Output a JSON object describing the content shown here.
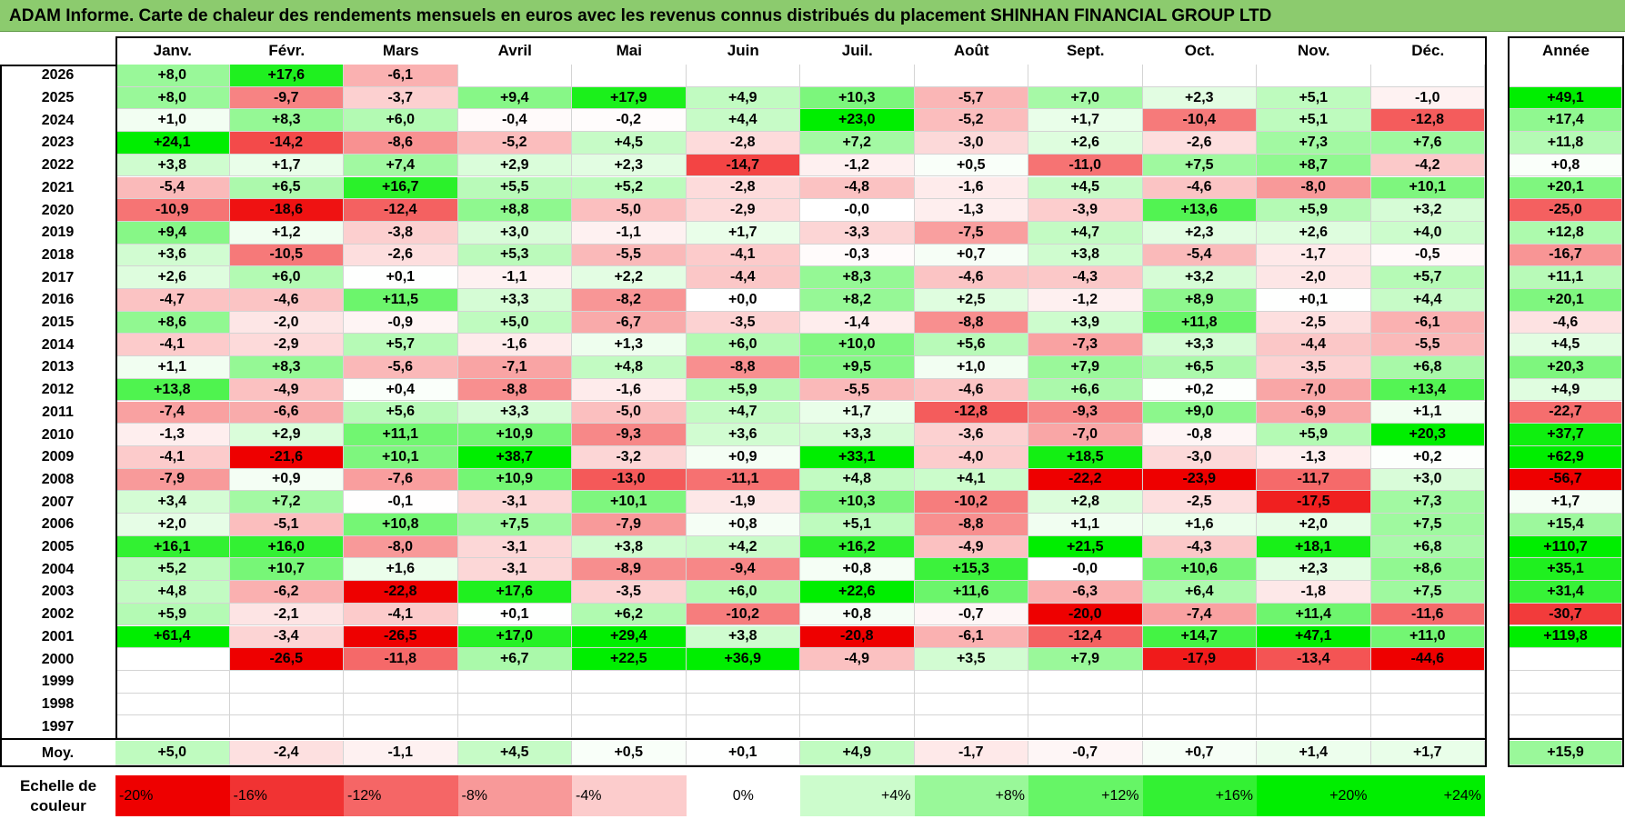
{
  "title": "ADAM Informe. Carte de chaleur des rendements mensuels en euros avec les revenus connus distribués du placement SHINHAN FINANCIAL GROUP LTD",
  "colors": {
    "title_bg": "#8ccb6e",
    "max_green": "#00ee00",
    "max_red": "#ee0000"
  },
  "chart_data": {
    "type": "heatmap",
    "months": [
      "Janv.",
      "Févr.",
      "Mars",
      "Avril",
      "Mai",
      "Juin",
      "Juil.",
      "Août",
      "Sept.",
      "Oct.",
      "Nov.",
      "Déc."
    ],
    "year_header": "Année",
    "avg_label": "Moy.",
    "rows": [
      {
        "year": "2026",
        "m": [
          "+8,0",
          "+17,6",
          "-6,1",
          "",
          "",
          "",
          "",
          "",
          "",
          "",
          "",
          ""
        ],
        "y": ""
      },
      {
        "year": "2025",
        "m": [
          "+8,0",
          "-9,7",
          "-3,7",
          "+9,4",
          "+17,9",
          "+4,9",
          "+10,3",
          "-5,7",
          "+7,0",
          "+2,3",
          "+5,1",
          "-1,0"
        ],
        "y": "+49,1"
      },
      {
        "year": "2024",
        "m": [
          "+1,0",
          "+8,3",
          "+6,0",
          "-0,4",
          "-0,2",
          "+4,4",
          "+23,0",
          "-5,2",
          "+1,7",
          "-10,4",
          "+5,1",
          "-12,8"
        ],
        "y": "+17,4"
      },
      {
        "year": "2023",
        "m": [
          "+24,1",
          "-14,2",
          "-8,6",
          "-5,2",
          "+4,5",
          "-2,8",
          "+7,2",
          "-3,0",
          "+2,6",
          "-2,6",
          "+7,3",
          "+7,6"
        ],
        "y": "+11,8"
      },
      {
        "year": "2022",
        "m": [
          "+3,8",
          "+1,7",
          "+7,4",
          "+2,9",
          "+2,3",
          "-14,7",
          "-1,2",
          "+0,5",
          "-11,0",
          "+7,5",
          "+8,7",
          "-4,2"
        ],
        "y": "+0,8"
      },
      {
        "year": "2021",
        "m": [
          "-5,4",
          "+6,5",
          "+16,7",
          "+5,5",
          "+5,2",
          "-2,8",
          "-4,8",
          "-1,6",
          "+4,5",
          "-4,6",
          "-8,0",
          "+10,1"
        ],
        "y": "+20,1"
      },
      {
        "year": "2020",
        "m": [
          "-10,9",
          "-18,6",
          "-12,4",
          "+8,8",
          "-5,0",
          "-2,9",
          "-0,0",
          "-1,3",
          "-3,9",
          "+13,6",
          "+5,9",
          "+3,2"
        ],
        "y": "-25,0"
      },
      {
        "year": "2019",
        "m": [
          "+9,4",
          "+1,2",
          "-3,8",
          "+3,0",
          "-1,1",
          "+1,7",
          "-3,3",
          "-7,5",
          "+4,7",
          "+2,3",
          "+2,6",
          "+4,0"
        ],
        "y": "+12,8"
      },
      {
        "year": "2018",
        "m": [
          "+3,6",
          "-10,5",
          "-2,6",
          "+5,3",
          "-5,5",
          "-4,1",
          "-0,3",
          "+0,7",
          "+3,8",
          "-5,4",
          "-1,7",
          "-0,5"
        ],
        "y": "-16,7"
      },
      {
        "year": "2017",
        "m": [
          "+2,6",
          "+6,0",
          "+0,1",
          "-1,1",
          "+2,2",
          "-4,4",
          "+8,3",
          "-4,6",
          "-4,3",
          "+3,2",
          "-2,0",
          "+5,7"
        ],
        "y": "+11,1"
      },
      {
        "year": "2016",
        "m": [
          "-4,7",
          "-4,6",
          "+11,5",
          "+3,3",
          "-8,2",
          "+0,0",
          "+8,2",
          "+2,5",
          "-1,2",
          "+8,9",
          "+0,1",
          "+4,4"
        ],
        "y": "+20,1"
      },
      {
        "year": "2015",
        "m": [
          "+8,6",
          "-2,0",
          "-0,9",
          "+5,0",
          "-6,7",
          "-3,5",
          "-1,4",
          "-8,8",
          "+3,9",
          "+11,8",
          "-2,5",
          "-6,1"
        ],
        "y": "-4,6"
      },
      {
        "year": "2014",
        "m": [
          "-4,1",
          "-2,9",
          "+5,7",
          "-1,6",
          "+1,3",
          "+6,0",
          "+10,0",
          "+5,6",
          "-7,3",
          "+3,3",
          "-4,4",
          "-5,5"
        ],
        "y": "+4,5"
      },
      {
        "year": "2013",
        "m": [
          "+1,1",
          "+8,3",
          "-5,6",
          "-7,1",
          "+4,8",
          "-8,8",
          "+9,5",
          "+1,0",
          "+7,9",
          "+6,5",
          "-3,5",
          "+6,8"
        ],
        "y": "+20,3"
      },
      {
        "year": "2012",
        "m": [
          "+13,8",
          "-4,9",
          "+0,4",
          "-8,8",
          "-1,6",
          "+5,9",
          "-5,5",
          "-4,6",
          "+6,6",
          "+0,2",
          "-7,0",
          "+13,4"
        ],
        "y": "+4,9"
      },
      {
        "year": "2011",
        "m": [
          "-7,4",
          "-6,6",
          "+5,6",
          "+3,3",
          "-5,0",
          "+4,7",
          "+1,7",
          "-12,8",
          "-9,3",
          "+9,0",
          "-6,9",
          "+1,1"
        ],
        "y": "-22,7"
      },
      {
        "year": "2010",
        "m": [
          "-1,3",
          "+2,9",
          "+11,1",
          "+10,9",
          "-9,3",
          "+3,6",
          "+3,3",
          "-3,6",
          "-7,0",
          "-0,8",
          "+5,9",
          "+20,3"
        ],
        "y": "+37,7"
      },
      {
        "year": "2009",
        "m": [
          "-4,1",
          "-21,6",
          "+10,1",
          "+38,7",
          "-3,2",
          "+0,9",
          "+33,1",
          "-4,0",
          "+18,5",
          "-3,0",
          "-1,3",
          "+0,2"
        ],
        "y": "+62,9"
      },
      {
        "year": "2008",
        "m": [
          "-7,9",
          "+0,9",
          "-7,6",
          "+10,9",
          "-13,0",
          "-11,1",
          "+4,8",
          "+4,1",
          "-22,2",
          "-23,9",
          "-11,7",
          "+3,0"
        ],
        "y": "-56,7"
      },
      {
        "year": "2007",
        "m": [
          "+3,4",
          "+7,2",
          "-0,1",
          "-3,1",
          "+10,1",
          "-1,9",
          "+10,3",
          "-10,2",
          "+2,8",
          "-2,5",
          "-17,5",
          "+7,3"
        ],
        "y": "+1,7"
      },
      {
        "year": "2006",
        "m": [
          "+2,0",
          "-5,1",
          "+10,8",
          "+7,5",
          "-7,9",
          "+0,8",
          "+5,1",
          "-8,8",
          "+1,1",
          "+1,6",
          "+2,0",
          "+7,5"
        ],
        "y": "+15,4"
      },
      {
        "year": "2005",
        "m": [
          "+16,1",
          "+16,0",
          "-8,0",
          "-3,1",
          "+3,8",
          "+4,2",
          "+16,2",
          "-4,9",
          "+21,5",
          "-4,3",
          "+18,1",
          "+6,8"
        ],
        "y": "+110,7"
      },
      {
        "year": "2004",
        "m": [
          "+5,2",
          "+10,7",
          "+1,6",
          "-3,1",
          "-8,9",
          "-9,4",
          "+0,8",
          "+15,3",
          "-0,0",
          "+10,6",
          "+2,3",
          "+8,6"
        ],
        "y": "+35,1"
      },
      {
        "year": "2003",
        "m": [
          "+4,8",
          "-6,2",
          "-22,8",
          "+17,6",
          "-3,5",
          "+6,0",
          "+22,6",
          "+11,6",
          "-6,3",
          "+6,4",
          "-1,8",
          "+7,5"
        ],
        "y": "+31,4"
      },
      {
        "year": "2002",
        "m": [
          "+5,9",
          "-2,1",
          "-4,1",
          "+0,1",
          "+6,2",
          "-10,2",
          "+0,8",
          "-0,7",
          "-20,0",
          "-7,4",
          "+11,4",
          "-11,6"
        ],
        "y": "-30,7"
      },
      {
        "year": "2001",
        "m": [
          "+61,4",
          "-3,4",
          "-26,5",
          "+17,0",
          "+29,4",
          "+3,8",
          "-20,8",
          "-6,1",
          "-12,4",
          "+14,7",
          "+47,1",
          "+11,0"
        ],
        "y": "+119,8"
      },
      {
        "year": "2000",
        "m": [
          "",
          "-26,5",
          "-11,8",
          "+6,7",
          "+22,5",
          "+36,9",
          "-4,9",
          "+3,5",
          "+7,9",
          "-17,9",
          "-13,4",
          "-44,6"
        ],
        "y": ""
      },
      {
        "year": "1999",
        "m": [
          "",
          "",
          "",
          "",
          "",
          "",
          "",
          "",
          "",
          "",
          "",
          ""
        ],
        "y": ""
      },
      {
        "year": "1998",
        "m": [
          "",
          "",
          "",
          "",
          "",
          "",
          "",
          "",
          "",
          "",
          "",
          ""
        ],
        "y": ""
      },
      {
        "year": "1997",
        "m": [
          "",
          "",
          "",
          "",
          "",
          "",
          "",
          "",
          "",
          "",
          "",
          ""
        ],
        "y": ""
      }
    ],
    "averages": {
      "m": [
        "+5,0",
        "-2,4",
        "-1,1",
        "+4,5",
        "+0,5",
        "+0,1",
        "+4,9",
        "-1,7",
        "-0,7",
        "+0,7",
        "+1,4",
        "+1,7"
      ],
      "y": "+15,9"
    },
    "scale_label": "Echelle de couleur",
    "scale": [
      "-20%",
      "-16%",
      "-12%",
      "-8%",
      "-4%",
      "0%",
      "+4%",
      "+8%",
      "+12%",
      "+16%",
      "+20%",
      "+24%"
    ]
  }
}
